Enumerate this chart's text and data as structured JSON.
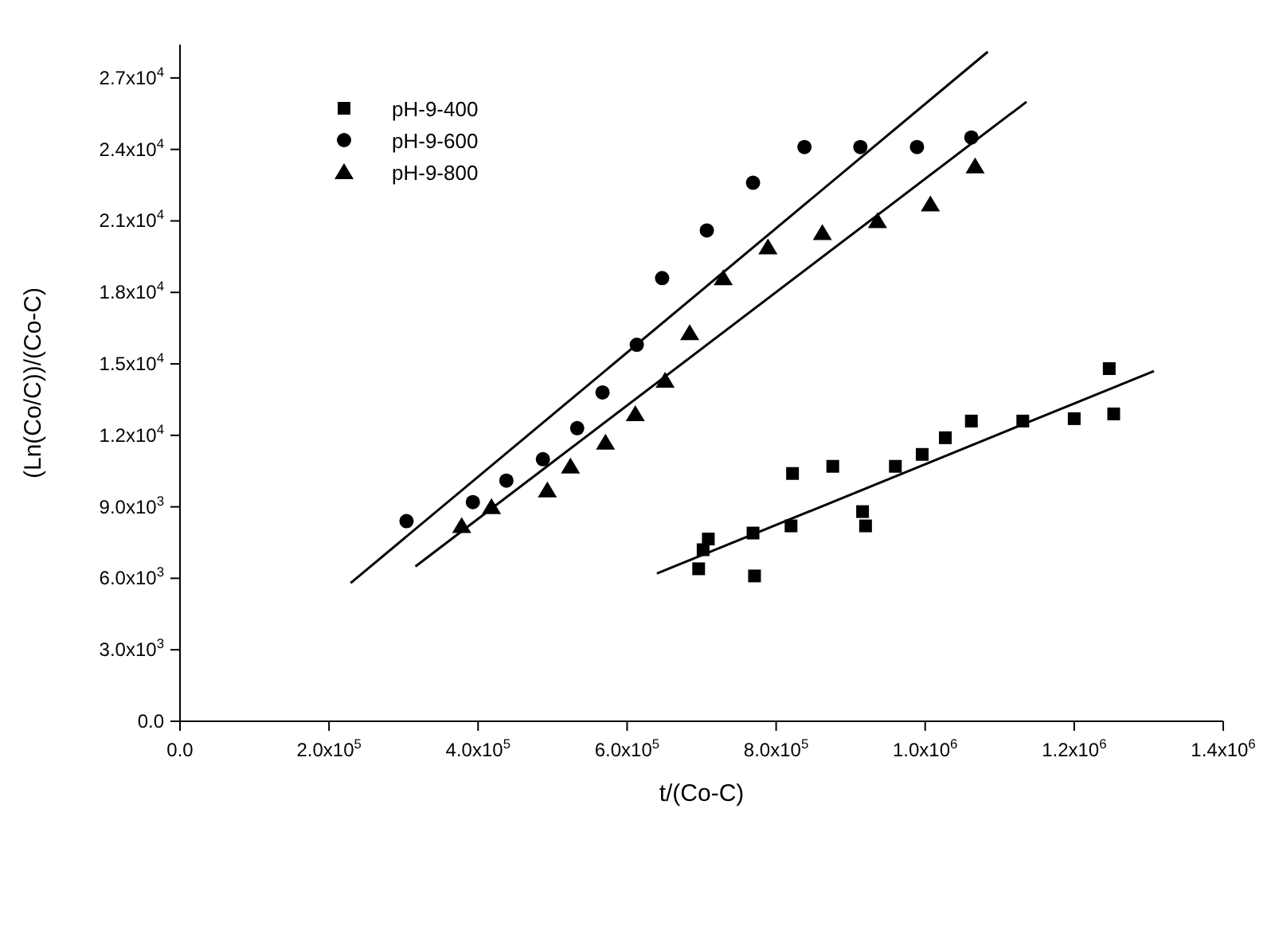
{
  "chart_data": {
    "type": "scatter",
    "xlabel": "t/(Co-C)",
    "ylabel": "(Ln(Co/C))/(Co-C)",
    "xlim": [
      0,
      1400000
    ],
    "ylim": [
      0,
      28400
    ],
    "xticks": [
      {
        "value": 0,
        "label": "0.0"
      },
      {
        "value": 200000,
        "label": "2.0x10$^{5}$"
      },
      {
        "value": 400000,
        "label": "4.0x10$^{5}$"
      },
      {
        "value": 600000,
        "label": "6.0x10$^{5}$"
      },
      {
        "value": 800000,
        "label": "8.0x10$^{5}$"
      },
      {
        "value": 1000000,
        "label": "1.0x10$^{6}$"
      },
      {
        "value": 1200000,
        "label": "1.2x10$^{6}$"
      },
      {
        "value": 1400000,
        "label": "1.4x10$^{6}$"
      }
    ],
    "yticks": [
      {
        "value": 0,
        "label": "0.0"
      },
      {
        "value": 3000,
        "label": "3.0x10$^{3}$"
      },
      {
        "value": 6000,
        "label": "6.0x10$^{3}$"
      },
      {
        "value": 9000,
        "label": "9.0x10$^{3}$"
      },
      {
        "value": 12000,
        "label": "1.2x10$^{4}$"
      },
      {
        "value": 15000,
        "label": "1.5x10$^{4}$"
      },
      {
        "value": 18000,
        "label": "1.8x10$^{4}$"
      },
      {
        "value": 21000,
        "label": "2.1x10$^{4}$"
      },
      {
        "value": 24000,
        "label": "2.4x10$^{4}$"
      },
      {
        "value": 27000,
        "label": "2.7x10$^{4}$"
      }
    ],
    "grid": false,
    "legend": "top left",
    "series": [
      {
        "name": "pH-9-400",
        "marker": "square",
        "color": "#000000",
        "x": [
          696000,
          702000,
          709000,
          769000,
          771000,
          820000,
          822000,
          876000,
          916000,
          920000,
          960000,
          996000,
          1027000,
          1062000,
          1131000,
          1200000,
          1247000,
          1253000
        ],
        "values": [
          6400,
          7200,
          7650,
          7900,
          6100,
          8200,
          10400,
          10700,
          8800,
          8200,
          10700,
          11200,
          11900,
          12600,
          12600,
          12700,
          14800,
          12900
        ]
      },
      {
        "name": "pH-9-600",
        "marker": "circle",
        "color": "#000000",
        "x": [
          304000,
          393000,
          438000,
          487000,
          533000,
          567000,
          613000,
          647000,
          707000,
          769000,
          838000,
          913000,
          989000,
          1062000
        ],
        "values": [
          8400,
          9200,
          10100,
          11000,
          12300,
          13800,
          15800,
          18600,
          20600,
          22600,
          24100,
          24100,
          24100,
          24500
        ]
      },
      {
        "name": "pH-9-800",
        "marker": "triangle",
        "color": "#000000",
        "x": [
          378000,
          418000,
          493000,
          524000,
          571000,
          611000,
          651000,
          684000,
          729000,
          789000,
          862000,
          936000,
          1007000,
          1067000
        ],
        "values": [
          8200,
          9000,
          9700,
          10700,
          11700,
          12900,
          14300,
          16300,
          18600,
          19900,
          20500,
          21000,
          21700,
          23300
        ]
      },
      {
        "type": "line",
        "marker": "none",
        "line_style": "solid",
        "color": "#000000",
        "x": [
          229000,
          1084000
        ],
        "values": [
          5800,
          28100
        ]
      },
      {
        "type": "line",
        "marker": "none",
        "line_style": "solid",
        "color": "#000000",
        "x": [
          316000,
          1136000
        ],
        "values": [
          6500,
          26000
        ]
      },
      {
        "type": "line",
        "marker": "none",
        "line_style": "solid",
        "color": "#000000",
        "x": [
          640000,
          1307000
        ],
        "values": [
          6200,
          14700
        ]
      }
    ]
  }
}
